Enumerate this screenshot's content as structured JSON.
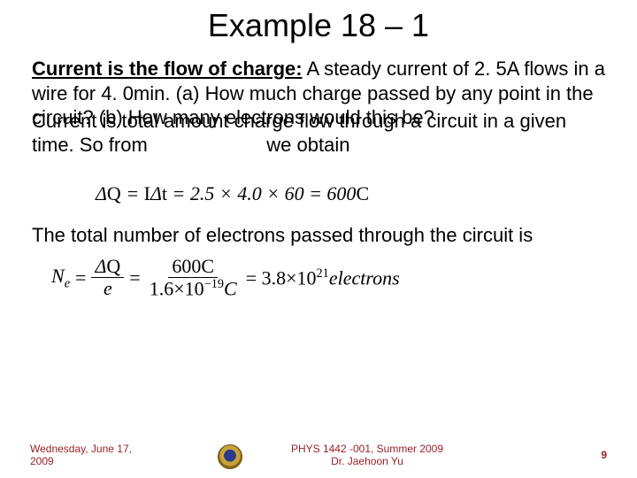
{
  "title": "Example 18 – 1",
  "problem": {
    "lead": "Current is the flow of charge:",
    "text": " A steady current of 2. 5A flows in a wire for 4. 0min.  (a) How much charge passed by any point in the circuit?  (b) How many electrons would this be?"
  },
  "answer1": {
    "line1": "Current is total amount charge flow through a circuit in a given time.  So from",
    "tail": "we obtain"
  },
  "eq1": {
    "text": "ΔQ = IΔt = 2.5 × 4.0 × 60 = 600C"
  },
  "answer2": "The total number of electrons passed through the circuit is",
  "eq2": {
    "lhs_sym": "N",
    "lhs_sub": "e",
    "frac1_num": "ΔQ",
    "frac1_den": "e",
    "frac2_num": "600C",
    "frac2_den_base": "1.6×10",
    "frac2_den_exp": "−19",
    "frac2_den_unit": "C",
    "rhs_base": "= 3.8×10",
    "rhs_exp": "21",
    "rhs_unit": "electrons"
  },
  "footer": {
    "date": "Wednesday, June 17, 2009",
    "course": "PHYS 1442 -001, Summer 2009",
    "instructor": "Dr. Jaehoon Yu",
    "page": "9"
  },
  "colors": {
    "accent": "#9a2028",
    "text": "#000000",
    "background": "#ffffff"
  }
}
